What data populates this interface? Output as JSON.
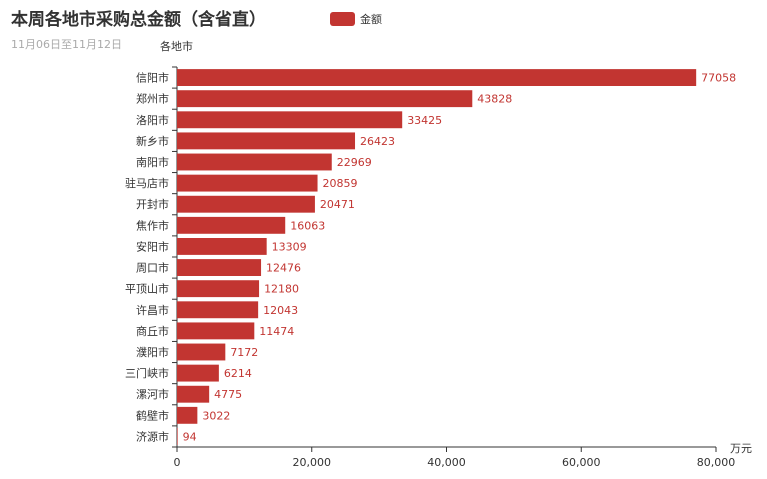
{
  "chart_data": {
    "type": "bar",
    "orientation": "horizontal",
    "title": "本周各地市采购总金额（含省直）",
    "subtitle": "11月06日至11月12日",
    "ylabel": "各地市",
    "xlabel": "万元",
    "legend": {
      "name": "金额",
      "placement": "top"
    },
    "categories": [
      "信阳市",
      "郑州市",
      "洛阳市",
      "新乡市",
      "南阳市",
      "驻马店市",
      "开封市",
      "焦作市",
      "安阳市",
      "周口市",
      "平顶山市",
      "许昌市",
      "商丘市",
      "濮阳市",
      "三门峡市",
      "漯河市",
      "鹤壁市",
      "济源市"
    ],
    "series": [
      {
        "name": "金额",
        "values": [
          77058,
          43828,
          33425,
          26423,
          22969,
          20859,
          20471,
          16063,
          13309,
          12476,
          12180,
          12043,
          11474,
          7172,
          6214,
          4775,
          3022,
          94
        ]
      }
    ],
    "xlim": [
      0,
      80000
    ],
    "xticks": [
      "0",
      "20,000",
      "40,000",
      "60,000",
      "80,000"
    ],
    "xtick_values": [
      0,
      20000,
      40000,
      60000,
      80000
    ],
    "grid": false,
    "colors": {
      "bar": "#c23531",
      "axis": "#333333",
      "label": "#c23531"
    }
  }
}
